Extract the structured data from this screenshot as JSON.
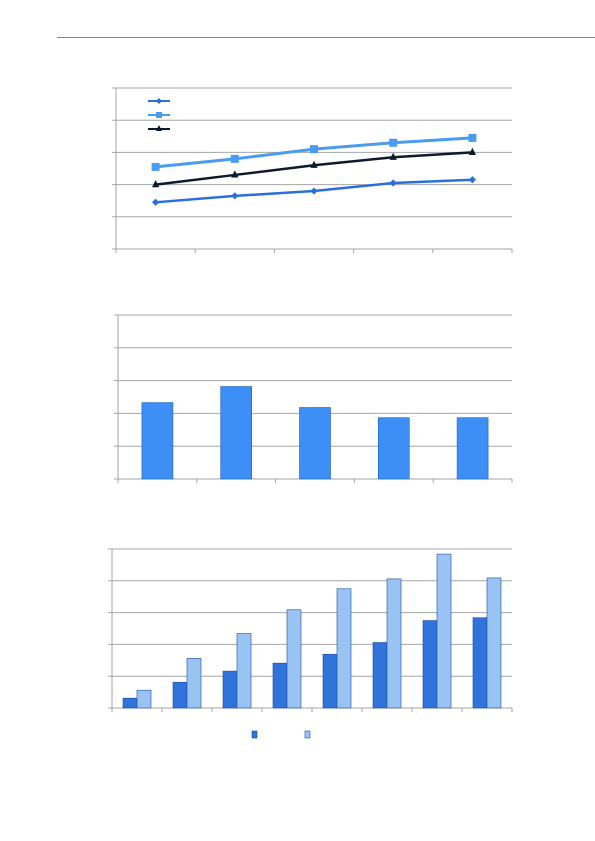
{
  "page": {
    "header_rule_color": "#26b3b0"
  },
  "colors": {
    "gridline": "#a6a6a6",
    "axis": "#a6a6a6"
  },
  "chart_data": [
    {
      "type": "line",
      "categories": [
        "",
        "",
        "",
        "",
        ""
      ],
      "ylim": [
        0,
        10
      ],
      "grid": true,
      "legend": "top-left",
      "series": [
        {
          "values": [
            2.9,
            3.3,
            3.6,
            4.1,
            4.3
          ],
          "color": "#2a6fdb",
          "marker": "diamond"
        },
        {
          "values": [
            5.1,
            5.6,
            6.2,
            6.6,
            6.9
          ],
          "color": "#4a9cf0",
          "marker": "square"
        },
        {
          "values": [
            4.0,
            4.6,
            5.2,
            5.7,
            6.0
          ],
          "color": "#0d1a2e",
          "marker": "triangle"
        }
      ]
    },
    {
      "type": "bar",
      "categories": [
        "",
        "",
        "",
        "",
        ""
      ],
      "ylim": [
        0,
        5
      ],
      "grid": true,
      "values": [
        2.33,
        2.82,
        2.18,
        1.87,
        1.87
      ],
      "color": "#3d8ef5"
    },
    {
      "type": "bar",
      "categories": [
        "",
        "",
        "",
        "",
        "",
        "",
        "",
        ""
      ],
      "ylim": [
        0,
        5
      ],
      "grid": true,
      "legend": "bottom",
      "series": [
        {
          "values": [
            0.31,
            0.81,
            1.16,
            1.41,
            1.69,
            2.06,
            2.75,
            2.84
          ],
          "color": "#2f73db"
        },
        {
          "values": [
            0.56,
            1.56,
            2.34,
            3.09,
            3.75,
            4.06,
            4.84,
            4.09
          ],
          "color": "#99c3f2"
        }
      ]
    }
  ]
}
